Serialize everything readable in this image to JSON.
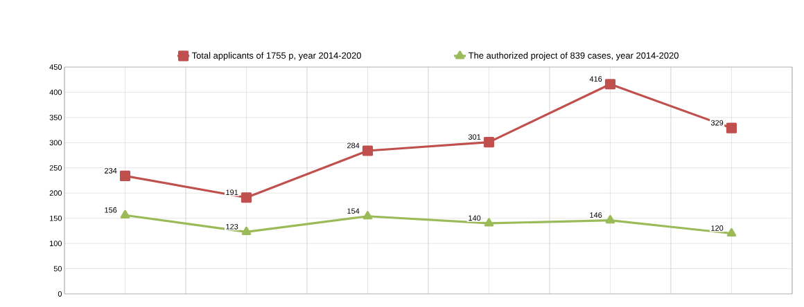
{
  "chart_data": {
    "type": "line",
    "categories": [
      null,
      null,
      null,
      null,
      null,
      null
    ],
    "series": [
      {
        "name": "Total applicants of 1755 p, year 2014-2020",
        "color": "#c0504d",
        "marker": "square",
        "values": [
          234,
          191,
          284,
          301,
          416,
          329
        ]
      },
      {
        "name": "The authorized project of 839 cases, year 2014-2020",
        "color": "#9bbb59",
        "marker": "triangle",
        "values": [
          156,
          123,
          154,
          140,
          146,
          120
        ]
      }
    ],
    "ylim": [
      0,
      450
    ],
    "yticks": [
      0,
      50,
      100,
      150,
      200,
      250,
      300,
      350,
      400,
      450
    ],
    "grid": true,
    "legend": "top",
    "tick_labels": "y",
    "data_labels": true
  }
}
